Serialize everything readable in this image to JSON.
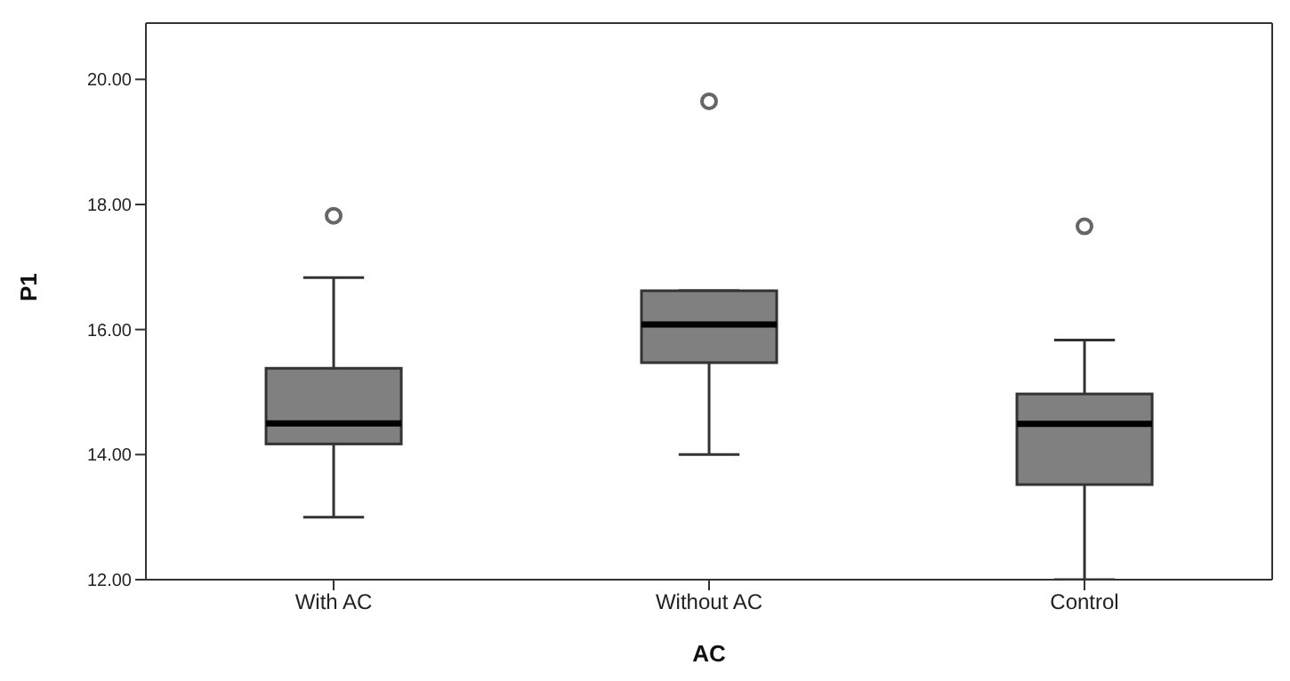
{
  "chart_data": {
    "type": "box",
    "xlabel": "AC",
    "ylabel": "P1",
    "categories": [
      "With AC",
      "Without AC",
      "Control"
    ],
    "boxes": [
      {
        "low": 13.0,
        "q1": 14.17,
        "median": 14.5,
        "q3": 15.38,
        "high": 16.83,
        "outliers": [
          17.82
        ]
      },
      {
        "low": 14.0,
        "q1": 15.47,
        "median": 16.08,
        "q3": 16.62,
        "high": 16.62,
        "outliers": [
          19.65
        ]
      },
      {
        "low": 12.0,
        "q1": 13.52,
        "median": 14.49,
        "q3": 14.97,
        "high": 15.83,
        "outliers": [
          17.65
        ]
      }
    ],
    "color": "#808080",
    "ylim": [
      12,
      20.9
    ],
    "yticks": [
      {
        "value": 12,
        "label": "12.00"
      },
      {
        "value": 14,
        "label": "14.00"
      },
      {
        "value": 16,
        "label": "16.00"
      },
      {
        "value": 18,
        "label": "18.00"
      },
      {
        "value": 20,
        "label": "20.00"
      }
    ],
    "grid": false
  }
}
